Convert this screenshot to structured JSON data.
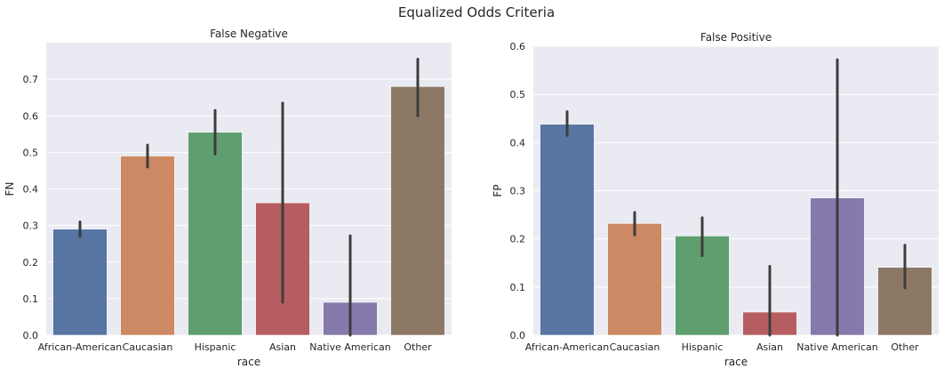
{
  "figure": {
    "suptitle": "Equalized Odds Criteria"
  },
  "chart_data": [
    {
      "type": "bar",
      "title": "False Negative",
      "xlabel": "race",
      "ylabel": "FN",
      "ylim": [
        0,
        0.8
      ],
      "yticks": [
        0.0,
        0.1,
        0.2,
        0.3,
        0.4,
        0.5,
        0.6,
        0.7
      ],
      "ytick_labels": [
        "0.0",
        "0.1",
        "0.2",
        "0.3",
        "0.4",
        "0.5",
        "0.6",
        "0.7"
      ],
      "categories": [
        "African-American",
        "Caucasian",
        "Hispanic",
        "Asian",
        "Native American",
        "Other"
      ],
      "values": [
        0.29,
        0.49,
        0.555,
        0.362,
        0.09,
        0.68
      ],
      "ci_low": [
        0.27,
        0.46,
        0.495,
        0.09,
        0.0,
        0.6
      ],
      "ci_high": [
        0.31,
        0.52,
        0.615,
        0.635,
        0.272,
        0.755
      ],
      "colors": [
        "#5875a4",
        "#cc8963",
        "#5f9e6e",
        "#b55d60",
        "#857aab",
        "#8d7866"
      ],
      "grid": true,
      "background": "#eaeaf2"
    },
    {
      "type": "bar",
      "title": "False Positive",
      "xlabel": "race",
      "ylabel": "FP",
      "ylim": [
        0,
        0.6
      ],
      "yticks": [
        0.0,
        0.1,
        0.2,
        0.3,
        0.4,
        0.5,
        0.6
      ],
      "ytick_labels": [
        "0.0",
        "0.1",
        "0.2",
        "0.3",
        "0.4",
        "0.5",
        "0.6"
      ],
      "categories": [
        "African-American",
        "Caucasian",
        "Hispanic",
        "Asian",
        "Native American",
        "Other"
      ],
      "values": [
        0.438,
        0.232,
        0.206,
        0.048,
        0.285,
        0.141
      ],
      "ci_low": [
        0.415,
        0.208,
        0.165,
        0.0,
        0.0,
        0.098
      ],
      "ci_high": [
        0.464,
        0.255,
        0.244,
        0.143,
        0.572,
        0.187
      ],
      "colors": [
        "#5875a4",
        "#cc8963",
        "#5f9e6e",
        "#b55d60",
        "#857aab",
        "#8d7866"
      ],
      "grid": true,
      "background": "#eaeaf2"
    }
  ]
}
